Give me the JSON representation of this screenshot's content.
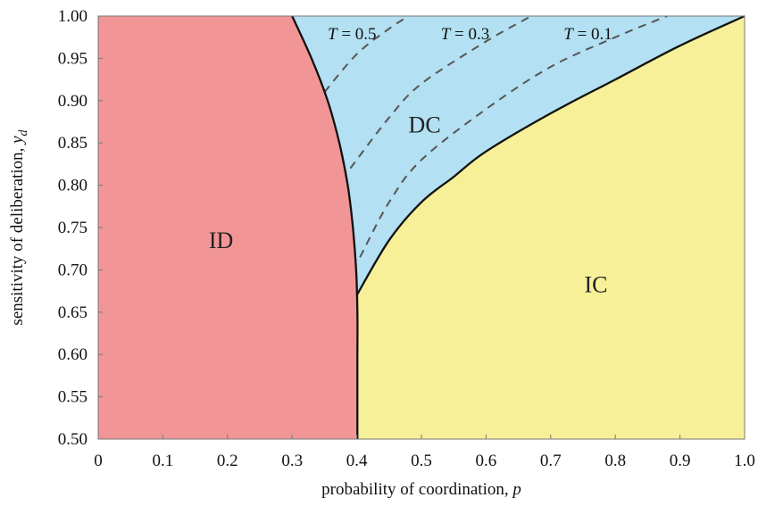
{
  "chart_data": {
    "type": "area",
    "xlabel": "probability of coordination, ",
    "xlabel_var": "p",
    "ylabel": "sensitivity of deliberation, ",
    "ylabel_var": "y",
    "ylabel_sub": "d",
    "xlim": [
      0,
      1
    ],
    "ylim": [
      0.5,
      1.0
    ],
    "x_ticks": [
      "0",
      "0.1",
      "0.2",
      "0.3",
      "0.4",
      "0.5",
      "0.6",
      "0.7",
      "0.8",
      "0.9",
      "1.0"
    ],
    "y_ticks": [
      "0.50",
      "0.55",
      "0.60",
      "0.65",
      "0.70",
      "0.75",
      "0.80",
      "0.85",
      "0.90",
      "0.95",
      "1.00"
    ],
    "grid": false,
    "regions": [
      {
        "label": "ID",
        "color": "#f29596"
      },
      {
        "label": "DC",
        "color": "#b3e0f2"
      },
      {
        "label": "IC",
        "color": "#f7f098"
      }
    ],
    "boundaries": {
      "ID_boundary": [
        [
          0.3,
          1.0
        ],
        [
          0.33,
          0.95
        ],
        [
          0.355,
          0.9
        ],
        [
          0.373,
          0.85
        ],
        [
          0.386,
          0.8
        ],
        [
          0.394,
          0.75
        ],
        [
          0.399,
          0.7
        ],
        [
          0.401,
          0.65
        ],
        [
          0.401,
          0.6
        ],
        [
          0.401,
          0.55
        ],
        [
          0.401,
          0.5
        ]
      ],
      "IC_boundary": [
        [
          0.4,
          0.67
        ],
        [
          0.45,
          0.735
        ],
        [
          0.5,
          0.78
        ],
        [
          0.55,
          0.81
        ],
        [
          0.6,
          0.84
        ],
        [
          0.7,
          0.885
        ],
        [
          0.8,
          0.925
        ],
        [
          0.9,
          0.965
        ],
        [
          1.0,
          1.0
        ]
      ]
    },
    "series": [
      {
        "name": "T = 0.5",
        "points": [
          [
            0.35,
            0.91
          ],
          [
            0.4,
            0.955
          ],
          [
            0.45,
            0.985
          ],
          [
            0.48,
            1.0
          ]
        ]
      },
      {
        "name": "T = 0.3",
        "points": [
          [
            0.39,
            0.82
          ],
          [
            0.45,
            0.88
          ],
          [
            0.5,
            0.92
          ],
          [
            0.6,
            0.97
          ],
          [
            0.67,
            1.0
          ]
        ]
      },
      {
        "name": "T = 0.1",
        "points": [
          [
            0.405,
            0.715
          ],
          [
            0.45,
            0.78
          ],
          [
            0.5,
            0.83
          ],
          [
            0.6,
            0.89
          ],
          [
            0.7,
            0.94
          ],
          [
            0.8,
            0.975
          ],
          [
            0.88,
            1.0
          ]
        ]
      }
    ],
    "curve_labels": [
      {
        "var": "T",
        "text": " = 0.5",
        "x": 0.355,
        "y": 0.98
      },
      {
        "var": "T",
        "text": " = 0.3",
        "x": 0.53,
        "y": 0.98
      },
      {
        "var": "T",
        "text": " = 0.1",
        "x": 0.72,
        "y": 0.98
      }
    ],
    "region_labels": [
      {
        "text": "ID",
        "x": 0.19,
        "y": 0.735
      },
      {
        "text": "DC",
        "x": 0.505,
        "y": 0.872
      },
      {
        "text": "IC",
        "x": 0.77,
        "y": 0.683
      }
    ]
  }
}
